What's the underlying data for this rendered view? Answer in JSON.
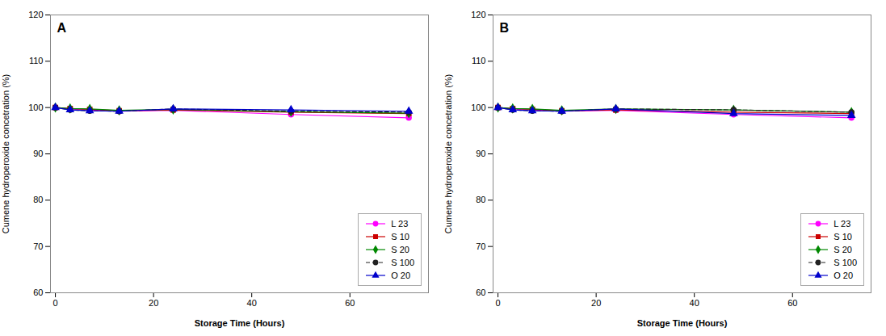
{
  "chart_data": [
    {
      "type": "line",
      "annotations": [
        "A"
      ],
      "xlabel": "Storage Time (Hours)",
      "ylabel": "Cumene hydroperoxide concetration (%)",
      "x": [
        0,
        3,
        7,
        13,
        24,
        48,
        72
      ],
      "series": [
        {
          "name": "L 23",
          "color": "#ff00ff",
          "marker": "circle",
          "line_style": "solid",
          "values": [
            100.0,
            99.7,
            99.5,
            99.2,
            99.4,
            98.5,
            97.8
          ],
          "yerr": [
            0.2,
            0.2,
            0.2,
            0.2,
            0.2,
            0.3,
            0.3
          ]
        },
        {
          "name": "S 10",
          "color": "#cc0000",
          "marker": "square",
          "line_style": "solid",
          "values": [
            100.0,
            99.8,
            99.6,
            99.3,
            99.5,
            99.0,
            98.7
          ],
          "yerr": [
            0.2,
            0.2,
            0.2,
            0.2,
            0.2,
            0.2,
            0.2
          ]
        },
        {
          "name": "S 20",
          "color": "#008800",
          "marker": "diamond",
          "line_style": "solid",
          "values": [
            100.0,
            99.8,
            99.7,
            99.4,
            99.6,
            99.1,
            98.8
          ],
          "yerr": [
            0.2,
            0.2,
            0.2,
            0.2,
            0.2,
            0.2,
            0.2
          ]
        },
        {
          "name": "S 100",
          "color": "#222222",
          "marker": "circle",
          "line_style": "dashed",
          "values": [
            100.0,
            99.5,
            99.3,
            99.2,
            99.7,
            99.2,
            99.0
          ],
          "yerr": [
            0.3,
            0.3,
            0.3,
            0.3,
            0.3,
            0.3,
            0.3
          ]
        },
        {
          "name": "O 20",
          "color": "#0000cc",
          "marker": "triangle",
          "line_style": "solid",
          "values": [
            100.0,
            99.5,
            99.3,
            99.2,
            99.7,
            99.5,
            99.2
          ],
          "yerr": [
            0.2,
            0.2,
            0.2,
            0.2,
            0.2,
            0.2,
            0.2
          ]
        }
      ],
      "ylim": [
        60,
        120
      ],
      "yticks": [
        60,
        70,
        80,
        90,
        100,
        110,
        120
      ],
      "xlim": [
        -1,
        76
      ],
      "xticks": [
        0,
        20,
        40,
        60
      ],
      "grid": false,
      "legend": "lower right"
    },
    {
      "type": "line",
      "annotations": [
        "B"
      ],
      "xlabel": "Storage Time (Hours)",
      "ylabel": "Cumene hydroperoxide concetration (%)",
      "x": [
        0,
        3,
        7,
        13,
        24,
        48,
        72
      ],
      "series": [
        {
          "name": "L 23",
          "color": "#ff00ff",
          "marker": "circle",
          "line_style": "solid",
          "values": [
            100.0,
            99.7,
            99.5,
            99.2,
            99.4,
            98.5,
            97.8
          ],
          "yerr": [
            0.2,
            0.2,
            0.2,
            0.2,
            0.2,
            0.3,
            0.3
          ]
        },
        {
          "name": "S 10",
          "color": "#cc0000",
          "marker": "square",
          "line_style": "solid",
          "values": [
            100.0,
            99.8,
            99.6,
            99.3,
            99.5,
            99.0,
            98.7
          ],
          "yerr": [
            0.2,
            0.2,
            0.2,
            0.2,
            0.2,
            0.2,
            0.2
          ]
        },
        {
          "name": "S 20",
          "color": "#008800",
          "marker": "diamond",
          "line_style": "solid",
          "values": [
            100.0,
            99.8,
            99.7,
            99.4,
            99.7,
            99.5,
            99.0
          ],
          "yerr": [
            0.2,
            0.2,
            0.2,
            0.2,
            0.2,
            0.2,
            0.2
          ]
        },
        {
          "name": "S 100",
          "color": "#222222",
          "marker": "circle",
          "line_style": "dashed",
          "values": [
            100.0,
            99.5,
            99.3,
            99.2,
            99.7,
            99.5,
            99.0
          ],
          "yerr": [
            0.3,
            0.3,
            0.3,
            0.3,
            0.3,
            0.8,
            0.3
          ]
        },
        {
          "name": "O 20",
          "color": "#0000cc",
          "marker": "triangle",
          "line_style": "solid",
          "values": [
            100.0,
            99.5,
            99.3,
            99.2,
            99.7,
            98.7,
            98.3
          ],
          "yerr": [
            0.2,
            0.2,
            0.2,
            0.2,
            0.2,
            0.2,
            0.2
          ]
        }
      ],
      "ylim": [
        60,
        120
      ],
      "yticks": [
        60,
        70,
        80,
        90,
        100,
        110,
        120
      ],
      "xlim": [
        -1,
        76
      ],
      "xticks": [
        0,
        20,
        40,
        60
      ],
      "grid": false,
      "legend": "lower right"
    }
  ]
}
